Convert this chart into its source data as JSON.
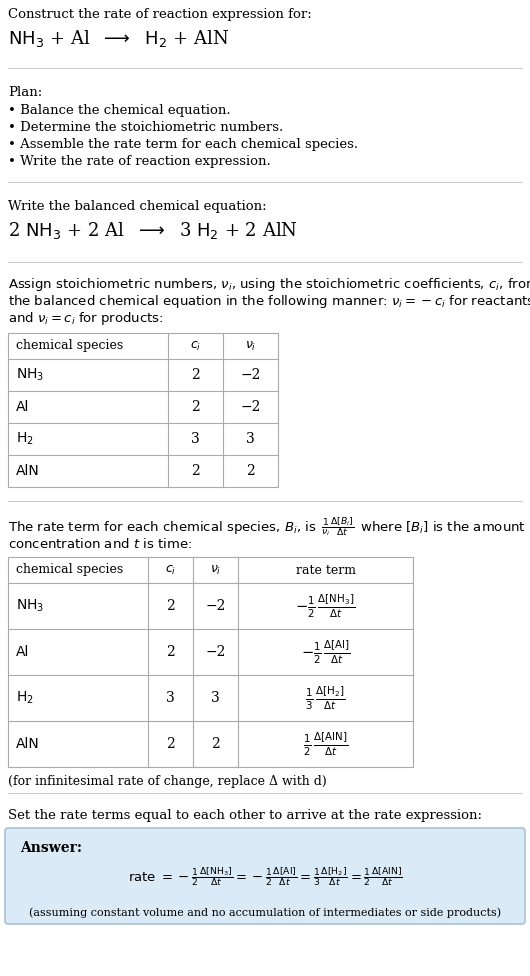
{
  "title_line1": "Construct the rate of reaction expression for:",
  "plan_header": "Plan:",
  "plan_items": [
    "• Balance the chemical equation.",
    "• Determine the stoichiometric numbers.",
    "• Assemble the rate term for each chemical species.",
    "• Write the rate of reaction expression."
  ],
  "balanced_header": "Write the balanced chemical equation:",
  "table1_headers": [
    "chemical species",
    "c_i",
    "ν_i"
  ],
  "table1_rows": [
    [
      "NH3",
      "2",
      "−2"
    ],
    [
      "Al",
      "2",
      "−2"
    ],
    [
      "H2",
      "3",
      "3"
    ],
    [
      "AlN",
      "2",
      "2"
    ]
  ],
  "table2_headers": [
    "chemical species",
    "c_i",
    "ν_i",
    "rate term"
  ],
  "table2_rows": [
    [
      "NH3",
      "2",
      "−2"
    ],
    [
      "Al",
      "2",
      "−2"
    ],
    [
      "H2",
      "3",
      "3"
    ],
    [
      "AlN",
      "2",
      "2"
    ]
  ],
  "infinitesimal_note": "(for infinitesimal rate of change, replace Δ with d)",
  "set_equal_text": "Set the rate terms equal to each other to arrive at the rate expression:",
  "answer_box_color": "#daeaf6",
  "answer_border_color": "#9ab8d0",
  "bg_color": "#ffffff",
  "text_color": "#000000",
  "grid_color": "#aaaaaa",
  "sep_color": "#cccccc"
}
